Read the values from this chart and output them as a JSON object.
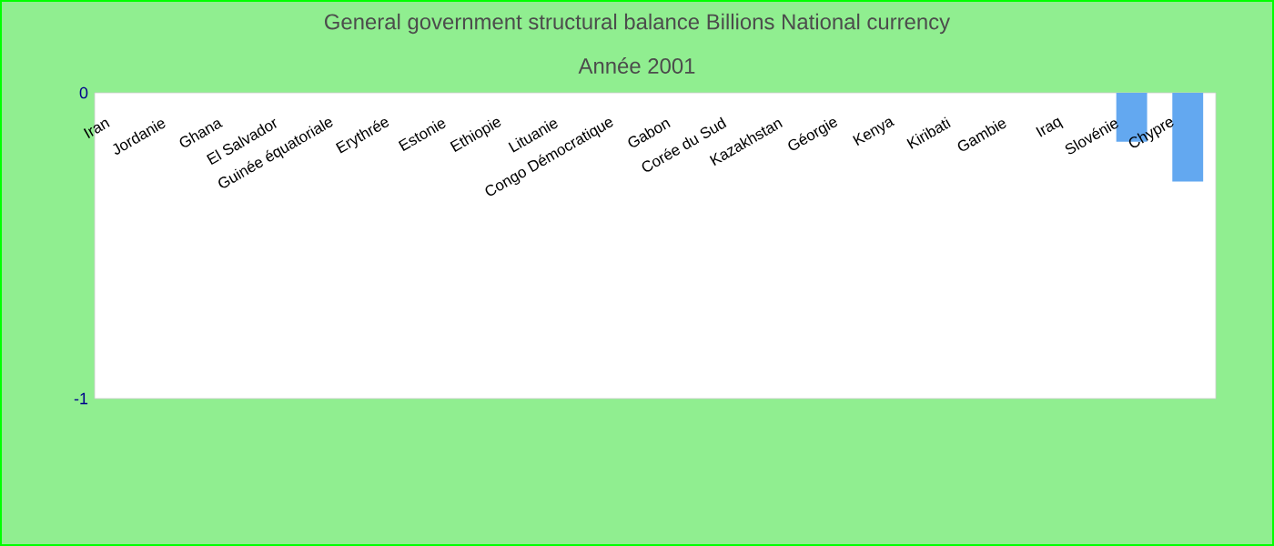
{
  "chart_data": {
    "type": "bar",
    "title": "General government structural balance Billions National currency",
    "subtitle": "Année 2001",
    "categories": [
      "Iran",
      "Jordanie",
      "Ghana",
      "El Salvador",
      "Guinée équatoriale",
      "Erythrée",
      "Estonie",
      "Ethiopie",
      "Lituanie",
      "Congo Démocratique",
      "Gabon",
      "Corée du Sud",
      "Kazakhstan",
      "Géorgie",
      "Kenya",
      "Kiribati",
      "Gambie",
      "Iraq",
      "Slovénie",
      "Chypre"
    ],
    "values": [
      null,
      null,
      null,
      null,
      null,
      null,
      null,
      null,
      null,
      null,
      null,
      null,
      null,
      null,
      null,
      null,
      null,
      null,
      -0.16,
      -0.29
    ],
    "color": "#63a8f0",
    "ylim": [
      -1,
      0
    ],
    "yticks": [
      0,
      -1
    ],
    "grid": false
  }
}
